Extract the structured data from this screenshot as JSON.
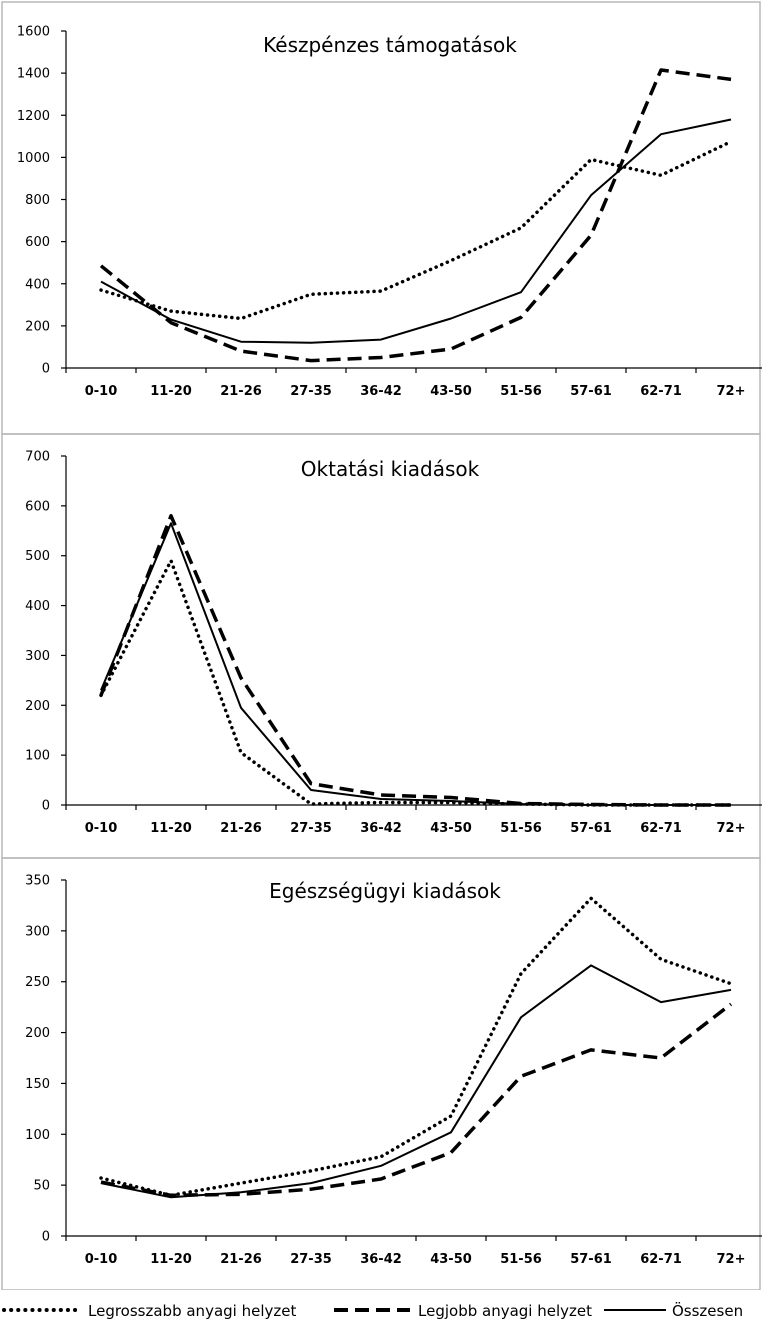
{
  "chart_data": [
    {
      "type": "line",
      "title": "Készpénzes támogatások",
      "categories": [
        "0-10",
        "11-20",
        "21-26",
        "27-35",
        "36-42",
        "43-50",
        "51-56",
        "57-61",
        "62-71",
        "72+"
      ],
      "ylim": [
        0,
        1600
      ],
      "yticks": [
        "0",
        "200",
        "400",
        "600",
        "800",
        "1000",
        "1200",
        "1400",
        "1600"
      ],
      "grid": false,
      "series": [
        {
          "name": "Legrosszabb anyagi helyzet",
          "style": "dotted",
          "values": [
            370,
            270,
            235,
            350,
            365,
            510,
            665,
            990,
            915,
            1075
          ]
        },
        {
          "name": "Legjobb anyagi helyzet",
          "style": "dashed",
          "values": [
            485,
            215,
            80,
            35,
            50,
            90,
            240,
            630,
            1415,
            1370
          ]
        },
        {
          "name": "Összesen",
          "style": "solid",
          "values": [
            410,
            230,
            125,
            120,
            135,
            235,
            360,
            820,
            1110,
            1180
          ]
        }
      ]
    },
    {
      "type": "line",
      "title": "Oktatási kiadások",
      "categories": [
        "0-10",
        "11-20",
        "21-26",
        "27-35",
        "36-42",
        "43-50",
        "51-56",
        "57-61",
        "62-71",
        "72+"
      ],
      "ylim": [
        0,
        700
      ],
      "yticks": [
        "0",
        "100",
        "200",
        "300",
        "400",
        "500",
        "600",
        "700"
      ],
      "grid": false,
      "series": [
        {
          "name": "Legrosszabb anyagi helyzet",
          "style": "dotted",
          "values": [
            220,
            490,
            105,
            2,
            5,
            5,
            2,
            0,
            0,
            0
          ]
        },
        {
          "name": "Legjobb anyagi helyzet",
          "style": "dashed",
          "values": [
            220,
            580,
            255,
            43,
            20,
            15,
            3,
            1,
            0,
            0
          ]
        },
        {
          "name": "Összesen",
          "style": "solid",
          "values": [
            230,
            565,
            195,
            30,
            12,
            8,
            2,
            0,
            0,
            0
          ]
        }
      ]
    },
    {
      "type": "line",
      "title": "Egészségügyi kiadások",
      "categories": [
        "0-10",
        "11-20",
        "21-26",
        "27-35",
        "36-42",
        "43-50",
        "51-56",
        "57-61",
        "62-71",
        "72+"
      ],
      "ylim": [
        0,
        350
      ],
      "yticks": [
        "0",
        "50",
        "100",
        "150",
        "200",
        "250",
        "300",
        "350"
      ],
      "grid": false,
      "series": [
        {
          "name": "Legrosszabb anyagi helyzet",
          "style": "dotted",
          "values": [
            57,
            40,
            52,
            64,
            78,
            118,
            258,
            332,
            272,
            248
          ]
        },
        {
          "name": "Legjobb anyagi helyzet",
          "style": "dashed",
          "values": [
            53,
            40,
            41,
            46,
            56,
            82,
            157,
            183,
            175,
            228
          ]
        },
        {
          "name": "Összesen",
          "style": "solid",
          "values": [
            52,
            38,
            43,
            52,
            69,
            102,
            215,
            266,
            230,
            242
          ]
        }
      ]
    }
  ],
  "legend": {
    "placement": "bottom",
    "items": [
      {
        "label": "Legrosszabb anyagi helyzet",
        "style": "dotted"
      },
      {
        "label": "Legjobb anyagi helyzet",
        "style": "dashed"
      },
      {
        "label": "Összesen",
        "style": "solid"
      }
    ]
  }
}
